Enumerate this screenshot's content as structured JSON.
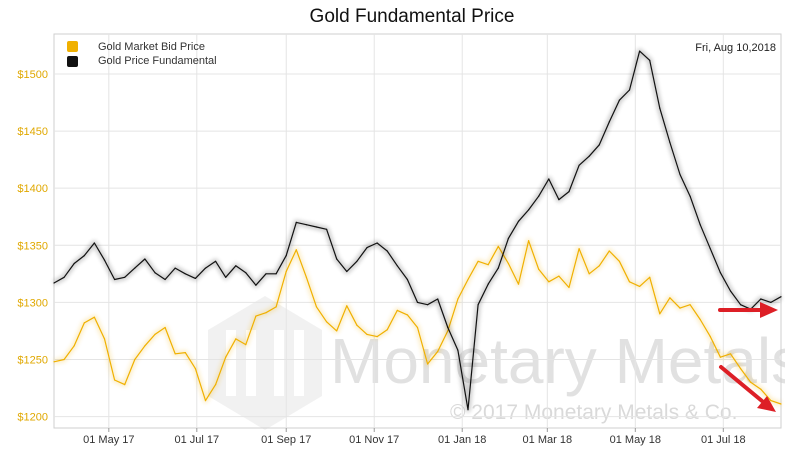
{
  "chart_data": {
    "type": "line",
    "title": "Gold Fundamental Price",
    "date_label": "Fri, Aug 10,2018",
    "watermark": "Monetary Metals",
    "copyright": "© 2017 Monetary Metals & Co.",
    "ylim": [
      1190,
      1535
    ],
    "xlim": [
      "2017-03-24",
      "2018-08-10"
    ],
    "y_ticks": [
      {
        "value": 1200,
        "label": "$1200"
      },
      {
        "value": 1250,
        "label": "$1250"
      },
      {
        "value": 1300,
        "label": "$1300"
      },
      {
        "value": 1350,
        "label": "$1350"
      },
      {
        "value": 1400,
        "label": "$1400"
      },
      {
        "value": 1450,
        "label": "$1450"
      },
      {
        "value": 1500,
        "label": "$1500"
      }
    ],
    "x_ticks": [
      {
        "date": "2017-05-01",
        "label": "01 May 17"
      },
      {
        "date": "2017-07-01",
        "label": "01 Jul 17"
      },
      {
        "date": "2017-09-01",
        "label": "01 Sep 17"
      },
      {
        "date": "2017-11-01",
        "label": "01 Nov 17"
      },
      {
        "date": "2018-01-01",
        "label": "01 Jan 18"
      },
      {
        "date": "2018-03-01",
        "label": "01 Mar 18"
      },
      {
        "date": "2018-05-01",
        "label": "01 May 18"
      },
      {
        "date": "2018-07-01",
        "label": "01 Jul 18"
      }
    ],
    "grid": true,
    "legend_position": "top-left",
    "series": [
      {
        "name": "Gold Market Bid Price",
        "color": "#f0b000",
        "points": [
          [
            "2017-03-24",
            1248
          ],
          [
            "2017-03-31",
            1250
          ],
          [
            "2017-04-07",
            1262
          ],
          [
            "2017-04-14",
            1282
          ],
          [
            "2017-04-21",
            1287
          ],
          [
            "2017-04-28",
            1268
          ],
          [
            "2017-05-05",
            1232
          ],
          [
            "2017-05-12",
            1228
          ],
          [
            "2017-05-19",
            1250
          ],
          [
            "2017-05-26",
            1262
          ],
          [
            "2017-06-02",
            1272
          ],
          [
            "2017-06-09",
            1278
          ],
          [
            "2017-06-16",
            1255
          ],
          [
            "2017-06-23",
            1256
          ],
          [
            "2017-06-30",
            1242
          ],
          [
            "2017-07-07",
            1214
          ],
          [
            "2017-07-14",
            1228
          ],
          [
            "2017-07-21",
            1252
          ],
          [
            "2017-07-28",
            1268
          ],
          [
            "2017-08-04",
            1263
          ],
          [
            "2017-08-11",
            1288
          ],
          [
            "2017-08-18",
            1291
          ],
          [
            "2017-08-25",
            1296
          ],
          [
            "2017-09-01",
            1327
          ],
          [
            "2017-09-08",
            1346
          ],
          [
            "2017-09-15",
            1322
          ],
          [
            "2017-09-22",
            1296
          ],
          [
            "2017-09-29",
            1283
          ],
          [
            "2017-10-06",
            1275
          ],
          [
            "2017-10-13",
            1297
          ],
          [
            "2017-10-20",
            1280
          ],
          [
            "2017-10-27",
            1272
          ],
          [
            "2017-11-03",
            1270
          ],
          [
            "2017-11-10",
            1276
          ],
          [
            "2017-11-17",
            1293
          ],
          [
            "2017-11-24",
            1289
          ],
          [
            "2017-12-01",
            1278
          ],
          [
            "2017-12-08",
            1246
          ],
          [
            "2017-12-15",
            1257
          ],
          [
            "2017-12-22",
            1275
          ],
          [
            "2017-12-29",
            1303
          ],
          [
            "2018-01-05",
            1320
          ],
          [
            "2018-01-12",
            1336
          ],
          [
            "2018-01-19",
            1333
          ],
          [
            "2018-01-26",
            1349
          ],
          [
            "2018-02-02",
            1334
          ],
          [
            "2018-02-09",
            1316
          ],
          [
            "2018-02-16",
            1354
          ],
          [
            "2018-02-23",
            1329
          ],
          [
            "2018-03-02",
            1318
          ],
          [
            "2018-03-09",
            1323
          ],
          [
            "2018-03-16",
            1313
          ],
          [
            "2018-03-23",
            1347
          ],
          [
            "2018-03-30",
            1325
          ],
          [
            "2018-04-06",
            1332
          ],
          [
            "2018-04-13",
            1345
          ],
          [
            "2018-04-20",
            1336
          ],
          [
            "2018-04-27",
            1318
          ],
          [
            "2018-05-04",
            1314
          ],
          [
            "2018-05-11",
            1322
          ],
          [
            "2018-05-18",
            1290
          ],
          [
            "2018-05-25",
            1304
          ],
          [
            "2018-06-01",
            1295
          ],
          [
            "2018-06-08",
            1298
          ],
          [
            "2018-06-15",
            1285
          ],
          [
            "2018-06-22",
            1270
          ],
          [
            "2018-06-29",
            1252
          ],
          [
            "2018-07-06",
            1255
          ],
          [
            "2018-07-13",
            1242
          ],
          [
            "2018-07-20",
            1230
          ],
          [
            "2018-07-27",
            1224
          ],
          [
            "2018-08-03",
            1214
          ],
          [
            "2018-08-10",
            1211
          ]
        ]
      },
      {
        "name": "Gold Price Fundamental",
        "color": "#111111",
        "points": [
          [
            "2017-03-24",
            1317
          ],
          [
            "2017-03-31",
            1322
          ],
          [
            "2017-04-07",
            1334
          ],
          [
            "2017-04-14",
            1341
          ],
          [
            "2017-04-21",
            1352
          ],
          [
            "2017-04-28",
            1337
          ],
          [
            "2017-05-05",
            1320
          ],
          [
            "2017-05-12",
            1322
          ],
          [
            "2017-05-19",
            1330
          ],
          [
            "2017-05-26",
            1338
          ],
          [
            "2017-06-02",
            1326
          ],
          [
            "2017-06-09",
            1320
          ],
          [
            "2017-06-16",
            1330
          ],
          [
            "2017-06-23",
            1325
          ],
          [
            "2017-06-30",
            1321
          ],
          [
            "2017-07-07",
            1330
          ],
          [
            "2017-07-14",
            1336
          ],
          [
            "2017-07-21",
            1322
          ],
          [
            "2017-07-28",
            1332
          ],
          [
            "2017-08-04",
            1326
          ],
          [
            "2017-08-11",
            1315
          ],
          [
            "2017-08-18",
            1325
          ],
          [
            "2017-08-25",
            1325
          ],
          [
            "2017-09-01",
            1341
          ],
          [
            "2017-09-08",
            1370
          ],
          [
            "2017-09-15",
            1368
          ],
          [
            "2017-09-22",
            1366
          ],
          [
            "2017-09-29",
            1364
          ],
          [
            "2017-10-06",
            1338
          ],
          [
            "2017-10-13",
            1327
          ],
          [
            "2017-10-20",
            1336
          ],
          [
            "2017-10-27",
            1348
          ],
          [
            "2017-11-03",
            1352
          ],
          [
            "2017-11-10",
            1345
          ],
          [
            "2017-11-17",
            1332
          ],
          [
            "2017-11-24",
            1320
          ],
          [
            "2017-12-01",
            1300
          ],
          [
            "2017-12-08",
            1298
          ],
          [
            "2017-12-15",
            1303
          ],
          [
            "2017-12-22",
            1278
          ],
          [
            "2017-12-29",
            1258
          ],
          [
            "2018-01-05",
            1206
          ],
          [
            "2018-01-12",
            1298
          ],
          [
            "2018-01-19",
            1316
          ],
          [
            "2018-01-26",
            1330
          ],
          [
            "2018-02-02",
            1356
          ],
          [
            "2018-02-09",
            1371
          ],
          [
            "2018-02-16",
            1381
          ],
          [
            "2018-02-23",
            1393
          ],
          [
            "2018-03-02",
            1408
          ],
          [
            "2018-03-09",
            1390
          ],
          [
            "2018-03-16",
            1397
          ],
          [
            "2018-03-23",
            1420
          ],
          [
            "2018-03-30",
            1428
          ],
          [
            "2018-04-06",
            1438
          ],
          [
            "2018-04-13",
            1458
          ],
          [
            "2018-04-20",
            1477
          ],
          [
            "2018-04-27",
            1486
          ],
          [
            "2018-05-04",
            1520
          ],
          [
            "2018-05-11",
            1512
          ],
          [
            "2018-05-18",
            1470
          ],
          [
            "2018-05-25",
            1440
          ],
          [
            "2018-06-01",
            1412
          ],
          [
            "2018-06-08",
            1393
          ],
          [
            "2018-06-15",
            1368
          ],
          [
            "2018-06-22",
            1347
          ],
          [
            "2018-06-29",
            1326
          ],
          [
            "2018-07-06",
            1310
          ],
          [
            "2018-07-13",
            1298
          ],
          [
            "2018-07-20",
            1294
          ],
          [
            "2018-07-27",
            1303
          ],
          [
            "2018-08-03",
            1300
          ],
          [
            "2018-08-10",
            1305
          ]
        ]
      }
    ]
  }
}
